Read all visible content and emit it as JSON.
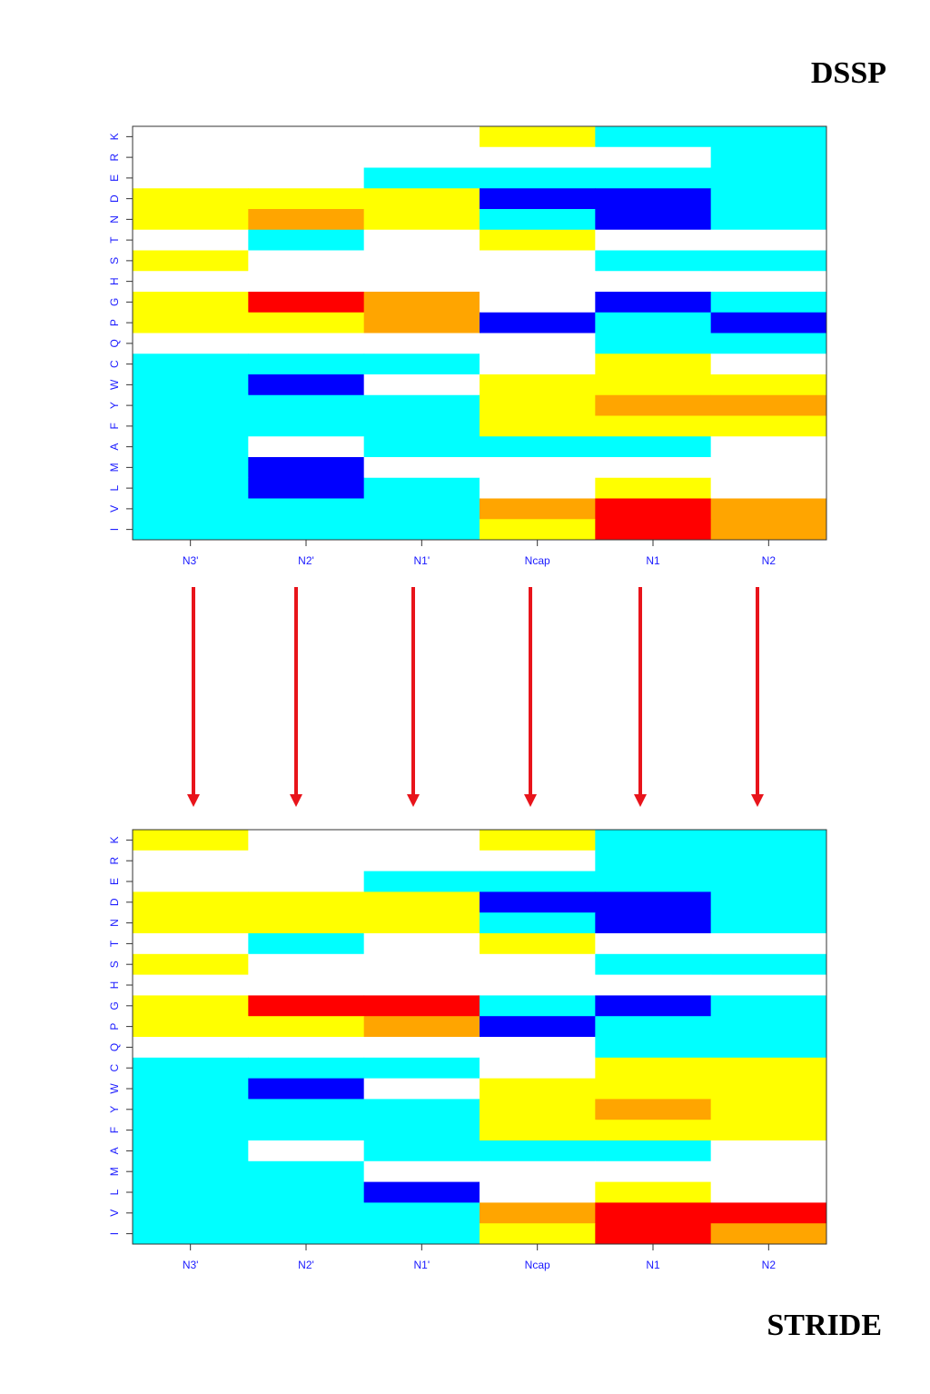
{
  "labels": {
    "top": "DSSP",
    "bottom": "STRIDE"
  },
  "colors": {
    "0": "#ffffff",
    "1": "#00ffff",
    "2": "#ffff00",
    "3": "#ffa500",
    "4": "#ff0000",
    "5": "#0000ff",
    "arrow": "#e8141b",
    "axis_text": "#1a1aff"
  },
  "chart_data": [
    {
      "type": "heatmap",
      "title": "DSSP",
      "categories": [
        "N3'",
        "N2'",
        "N1'",
        "Ncap",
        "N1",
        "N2"
      ],
      "rows": [
        "K",
        "R",
        "E",
        "D",
        "N",
        "T",
        "S",
        "H",
        "G",
        "P",
        "Q",
        "C",
        "W",
        "Y",
        "F",
        "A",
        "M",
        "L",
        "V",
        "I"
      ],
      "values": [
        [
          0,
          0,
          0,
          2,
          1,
          1
        ],
        [
          0,
          0,
          0,
          0,
          0,
          1
        ],
        [
          0,
          0,
          1,
          1,
          1,
          1
        ],
        [
          2,
          2,
          2,
          5,
          5,
          1
        ],
        [
          2,
          3,
          2,
          1,
          5,
          1
        ],
        [
          0,
          1,
          0,
          2,
          0,
          0
        ],
        [
          2,
          0,
          0,
          0,
          1,
          1
        ],
        [
          0,
          0,
          0,
          0,
          0,
          0
        ],
        [
          2,
          4,
          3,
          0,
          5,
          1
        ],
        [
          2,
          2,
          3,
          5,
          1,
          5
        ],
        [
          0,
          0,
          0,
          0,
          1,
          1
        ],
        [
          1,
          1,
          1,
          0,
          2,
          0
        ],
        [
          1,
          5,
          0,
          2,
          2,
          2
        ],
        [
          1,
          1,
          1,
          2,
          3,
          3
        ],
        [
          1,
          1,
          1,
          2,
          2,
          2
        ],
        [
          1,
          0,
          1,
          1,
          1,
          0
        ],
        [
          1,
          5,
          0,
          0,
          0,
          0
        ],
        [
          1,
          5,
          1,
          0,
          2,
          0
        ],
        [
          1,
          1,
          1,
          3,
          4,
          3
        ],
        [
          1,
          1,
          1,
          2,
          4,
          3
        ]
      ]
    },
    {
      "type": "heatmap",
      "title": "STRIDE",
      "categories": [
        "N3'",
        "N2'",
        "N1'",
        "Ncap",
        "N1",
        "N2"
      ],
      "rows": [
        "K",
        "R",
        "E",
        "D",
        "N",
        "T",
        "S",
        "H",
        "G",
        "P",
        "Q",
        "C",
        "W",
        "Y",
        "F",
        "A",
        "M",
        "L",
        "V",
        "I"
      ],
      "values": [
        [
          2,
          0,
          0,
          2,
          1,
          1
        ],
        [
          0,
          0,
          0,
          0,
          1,
          1
        ],
        [
          0,
          0,
          1,
          1,
          1,
          1
        ],
        [
          2,
          2,
          2,
          5,
          5,
          1
        ],
        [
          2,
          2,
          2,
          1,
          5,
          1
        ],
        [
          0,
          1,
          0,
          2,
          0,
          0
        ],
        [
          2,
          0,
          0,
          0,
          1,
          1
        ],
        [
          0,
          0,
          0,
          0,
          0,
          0
        ],
        [
          2,
          4,
          4,
          1,
          5,
          1
        ],
        [
          2,
          2,
          3,
          5,
          1,
          1
        ],
        [
          0,
          0,
          0,
          0,
          1,
          1
        ],
        [
          1,
          1,
          1,
          0,
          2,
          2
        ],
        [
          1,
          5,
          0,
          2,
          2,
          2
        ],
        [
          1,
          1,
          1,
          2,
          3,
          2
        ],
        [
          1,
          1,
          1,
          2,
          2,
          2
        ],
        [
          1,
          0,
          1,
          1,
          1,
          0
        ],
        [
          1,
          1,
          0,
          0,
          0,
          0
        ],
        [
          1,
          1,
          5,
          0,
          2,
          0
        ],
        [
          1,
          1,
          1,
          3,
          4,
          4
        ],
        [
          1,
          1,
          1,
          2,
          4,
          3
        ]
      ]
    }
  ]
}
